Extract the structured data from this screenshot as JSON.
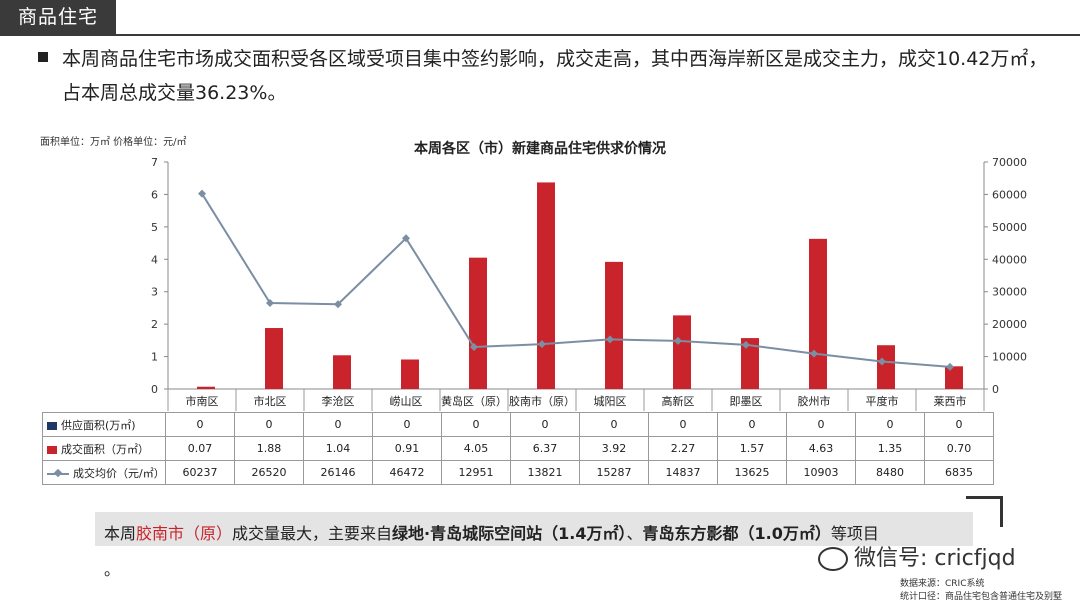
{
  "header": {
    "tag": "商品住宅"
  },
  "summary": {
    "text": "本周商品住宅市场成交面积受各区域受项目集中签约影响，成交走高，其中西海岸新区是成交主力，成交10.42万㎡，占本周总成交量36.23%。"
  },
  "chart_data": {
    "type": "bar",
    "title": "本周各区（市）新建商品住宅供求价情况",
    "unit_label": "面积单位：万㎡  价格单位：元/㎡",
    "categories": [
      "市南区",
      "市北区",
      "李沧区",
      "崂山区",
      "黄岛区（原）",
      "胶南市（原）",
      "城阳区",
      "高新区",
      "即墨区",
      "胶州市",
      "平度市",
      "莱西市"
    ],
    "y_left": {
      "min": 0,
      "max": 7,
      "ticks": [
        "0",
        "1",
        "2",
        "3",
        "4",
        "5",
        "6",
        "7"
      ]
    },
    "y_right": {
      "min": 0,
      "max": 70000,
      "ticks": [
        "0",
        "10000",
        "20000",
        "30000",
        "40000",
        "50000",
        "60000",
        "70000"
      ]
    },
    "series": [
      {
        "name": "供应面积(万㎡)",
        "axis": "left",
        "type": "bar",
        "color": "#1f3864",
        "values": [
          0,
          0,
          0,
          0,
          0,
          0,
          0,
          0,
          0,
          0,
          0,
          0
        ],
        "labels": [
          "0",
          "0",
          "0",
          "0",
          "0",
          "0",
          "0",
          "0",
          "0",
          "0",
          "0",
          "0"
        ]
      },
      {
        "name": "成交面积（万㎡）",
        "axis": "left",
        "type": "bar",
        "color": "#c9242c",
        "values": [
          0.07,
          1.88,
          1.04,
          0.91,
          4.05,
          6.37,
          3.92,
          2.27,
          1.57,
          4.63,
          1.35,
          0.7
        ],
        "labels": [
          "0.07",
          "1.88",
          "1.04",
          "0.91",
          "4.05",
          "6.37",
          "3.92",
          "2.27",
          "1.57",
          "4.63",
          "1.35",
          "0.70"
        ]
      },
      {
        "name": "成交均价（元/㎡）",
        "axis": "right",
        "type": "line",
        "color": "#7b8ea3",
        "values": [
          60237,
          26520,
          26146,
          46472,
          12951,
          13821,
          15287,
          14837,
          13625,
          10903,
          8480,
          6835
        ],
        "labels": [
          "60237",
          "26520",
          "26146",
          "46472",
          "12951",
          "13821",
          "15287",
          "14837",
          "13625",
          "10903",
          "8480",
          "6835"
        ]
      }
    ]
  },
  "note": {
    "prefix": "本周",
    "highlight": "胶南市（原）",
    "middle": "成交量最大，主要来自",
    "project1": "绿地·青岛城际空间站（1.4万㎡）",
    "sep": "、",
    "project2": "青岛东方影都（1.0万㎡）",
    "suffix": "等项目",
    "end": "。"
  },
  "watermark": {
    "text": "微信号: cricfjqd"
  },
  "source": {
    "line1": "数据来源：CRIC系统",
    "line2": "统计口径：商品住宅包含普通住宅及别墅"
  }
}
